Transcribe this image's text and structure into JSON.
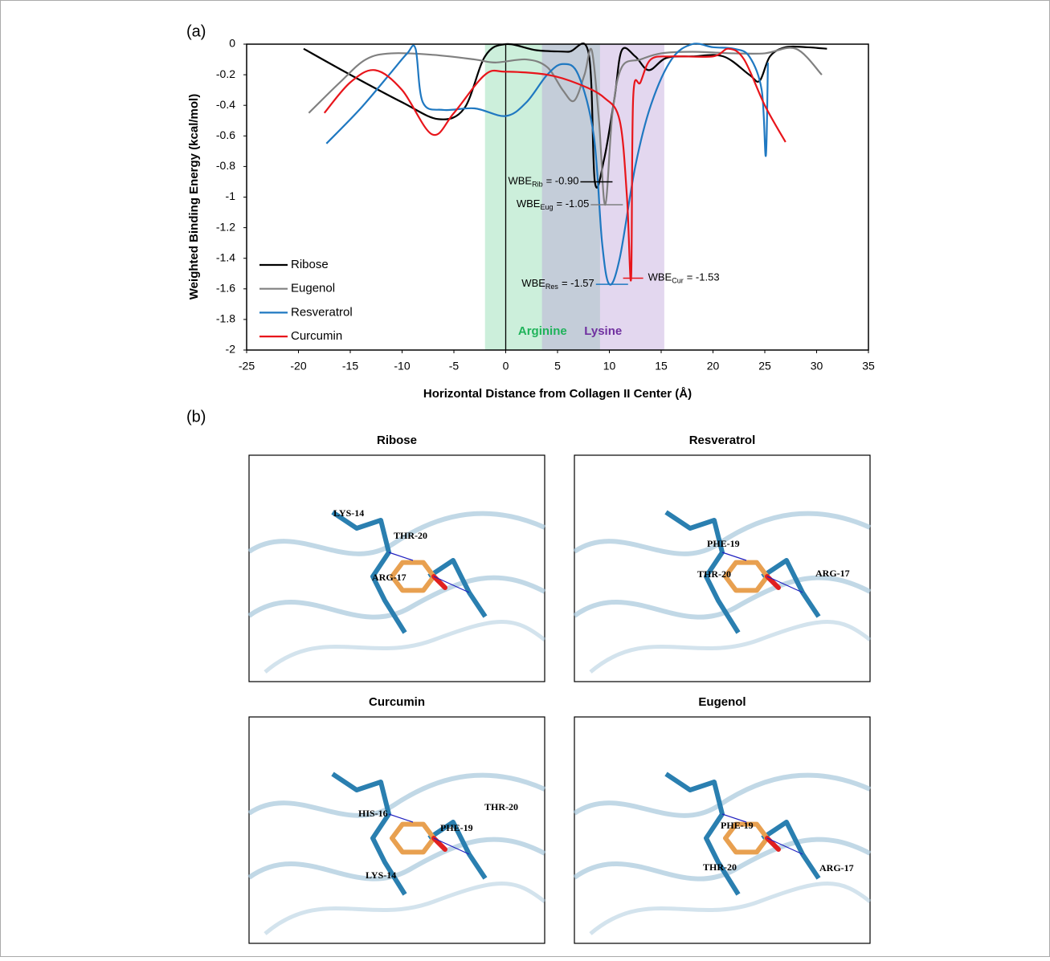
{
  "panel_labels": [
    "(a)",
    "(b)"
  ],
  "chart_data": {
    "type": "line",
    "xlabel": "Horizontal Distance from Collagen II Center (Å)",
    "ylabel": "Weighted Binding Energy (kcal/mol)",
    "xlim": [
      -25,
      35
    ],
    "xticks": [
      -25,
      -20,
      -15,
      -10,
      -5,
      0,
      5,
      10,
      15,
      20,
      25,
      30,
      35
    ],
    "ylim": [
      -2,
      0
    ],
    "yticks": [
      -2,
      -1.8,
      -1.6,
      -1.4,
      -1.2,
      -1,
      -0.8,
      -0.6,
      -0.4,
      -0.2,
      0
    ],
    "legend": "lower left",
    "reference_line": 0,
    "regions": [
      {
        "label": "Arginine",
        "range": [
          -2,
          9.1
        ],
        "color": "#7fd8a6",
        "label_color": "#1fb35a"
      },
      {
        "label": "Lysine",
        "range": [
          3.5,
          15.3
        ],
        "color": "#b99ad6",
        "label_color": "#7030a0"
      }
    ],
    "series": [
      {
        "name": "Ribose",
        "color": "#000000",
        "x": [
          -19.5,
          -15,
          -10,
          -6.5,
          -4,
          -2,
          0,
          3,
          6,
          8,
          8.6,
          9.5,
          10.5,
          11.2,
          12.5,
          13.8,
          15.5,
          18,
          21,
          23.5,
          24.5,
          25.5,
          27,
          29,
          31
        ],
        "values": [
          -0.03,
          -0.2,
          -0.38,
          -0.49,
          -0.42,
          -0.08,
          0,
          -0.04,
          -0.05,
          -0.06,
          -0.9,
          -0.75,
          -0.35,
          -0.04,
          -0.08,
          -0.17,
          -0.09,
          -0.08,
          -0.08,
          -0.2,
          -0.24,
          -0.08,
          -0.02,
          -0.02,
          -0.03
        ]
      },
      {
        "name": "Eugenol",
        "color": "#808080",
        "x": [
          -19,
          -16,
          -13.5,
          -11,
          -7,
          -3,
          -1,
          2,
          4,
          5.5,
          6.6,
          7.6,
          8.3,
          9,
          9.6,
          10.3,
          11.2,
          13,
          15,
          18,
          22,
          25,
          28,
          30.5
        ],
        "values": [
          -0.45,
          -0.25,
          -0.1,
          -0.06,
          -0.07,
          -0.1,
          -0.12,
          -0.1,
          -0.15,
          -0.3,
          -0.37,
          -0.2,
          -0.04,
          -0.5,
          -1.05,
          -0.45,
          -0.15,
          -0.1,
          -0.06,
          -0.05,
          -0.06,
          -0.06,
          -0.03,
          -0.2
        ]
      },
      {
        "name": "Resveratrol",
        "color": "#1f78c1",
        "x": [
          -17.3,
          -14,
          -11,
          -9.5,
          -8.7,
          -8,
          -6,
          -3,
          0,
          2,
          4,
          5.5,
          7,
          8.5,
          9.3,
          10,
          11,
          12.5,
          14,
          16,
          18,
          20,
          22,
          23.5,
          24.7,
          25.1,
          25.3
        ],
        "values": [
          -0.65,
          -0.42,
          -0.18,
          -0.06,
          -0.03,
          -0.38,
          -0.43,
          -0.42,
          -0.47,
          -0.38,
          -0.2,
          -0.13,
          -0.2,
          -0.6,
          -1.3,
          -1.57,
          -1.4,
          -0.8,
          -0.4,
          -0.1,
          0,
          -0.02,
          -0.03,
          -0.08,
          -0.3,
          -0.73,
          -0.12
        ]
      },
      {
        "name": "Curcumin",
        "color": "#e8151b",
        "x": [
          -17.5,
          -15,
          -12.6,
          -10,
          -7.1,
          -5,
          -2,
          0,
          4,
          7,
          9.5,
          11,
          11.7,
          12.1,
          12.3,
          13,
          14,
          16,
          20,
          21.5,
          23,
          25,
          27
        ],
        "values": [
          -0.45,
          -0.25,
          -0.17,
          -0.3,
          -0.59,
          -0.45,
          -0.2,
          -0.18,
          -0.2,
          -0.26,
          -0.35,
          -0.5,
          -1.0,
          -1.53,
          -0.35,
          -0.25,
          -0.1,
          -0.08,
          -0.08,
          -0.03,
          -0.1,
          -0.4,
          -0.64
        ]
      }
    ],
    "annotations": [
      {
        "label": "WBE",
        "subscript": "Rib",
        "text": "= -0.90",
        "x": 8.6,
        "value": -0.9,
        "side": "left"
      },
      {
        "label": "WBE",
        "subscript": "Eug",
        "text": "= -1.05",
        "x": 9.6,
        "value": -1.05,
        "side": "left"
      },
      {
        "label": "WBE",
        "subscript": "Res",
        "text": "= -1.57",
        "x": 10.1,
        "value": -1.57,
        "side": "left"
      },
      {
        "label": "WBE",
        "subscript": "Cur",
        "text": "= -1.53",
        "x": 12.1,
        "value": -1.53,
        "side": "right"
      }
    ]
  },
  "structures": [
    {
      "title": "Ribose",
      "residues": [
        "LYS-14",
        "THR-20",
        "ARG-17"
      ]
    },
    {
      "title": "Resveratrol",
      "residues": [
        "PHE-19",
        "THR-20",
        "ARG-17"
      ]
    },
    {
      "title": "Curcumin",
      "residues": [
        "HIS-16",
        "PHE-19",
        "THR-20",
        "LYS-14"
      ]
    },
    {
      "title": "Eugenol",
      "residues": [
        "PHE-19",
        "THR-20",
        "ARG-17"
      ]
    }
  ]
}
